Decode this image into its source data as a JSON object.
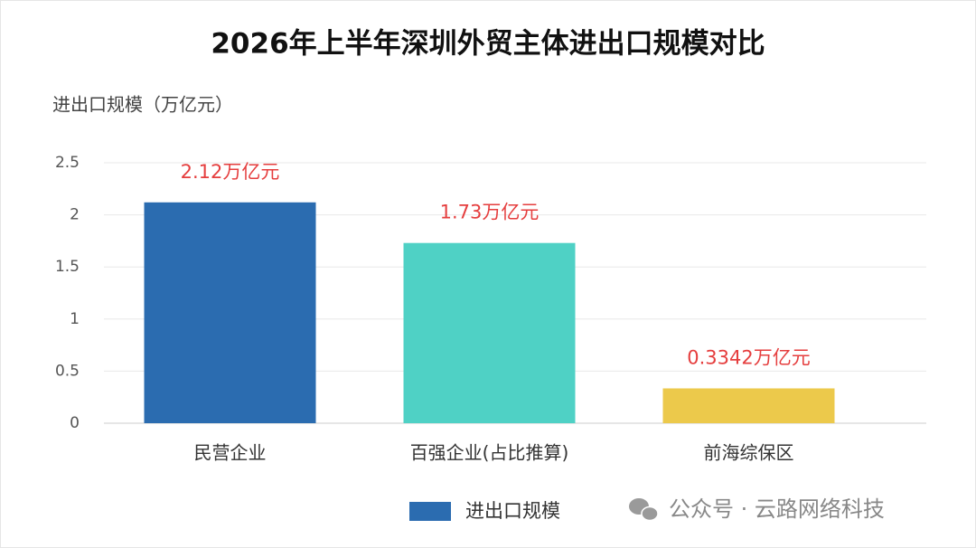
{
  "chart_data": {
    "type": "bar",
    "title": "2026年上半年深圳外贸主体进出口规模对比",
    "y_axis_label": "进出口规模（万亿元）",
    "categories": [
      "民营企业",
      "百强企业(占比推算)",
      "前海综保区"
    ],
    "series": [
      {
        "name": "进出口规模",
        "color": "#2b6cb0",
        "bar_colors": [
          "#2b6cb0",
          "#4fd1c5",
          "#ecc94b"
        ],
        "values": [
          2.12,
          1.73,
          0.3342
        ],
        "value_labels": [
          "2.12万亿元",
          "1.73万亿元",
          "0.3342万亿元"
        ],
        "value_label_color": "#e53e3e"
      }
    ],
    "ylim": [
      0,
      2.5
    ],
    "yticks": [
      0,
      0.5,
      1,
      1.5,
      2,
      2.5
    ],
    "grid": true,
    "legend": "bottom",
    "watermark": "公众号 · 云路网络科技"
  }
}
